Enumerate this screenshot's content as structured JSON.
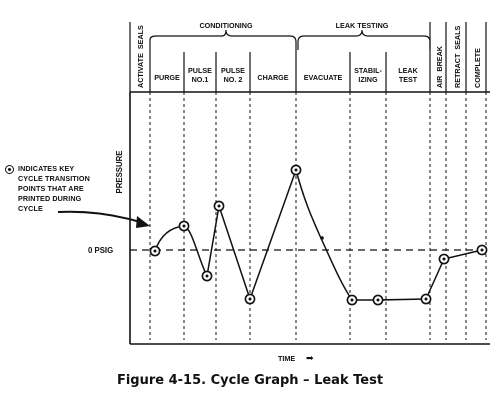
{
  "diagram": {
    "phase_groups": {
      "conditioning": "CONDITIONING",
      "leak_testing": "LEAK TESTING"
    },
    "steps": [
      [
        "ACTIVATE",
        "SEALS"
      ],
      [
        "PURGE"
      ],
      [
        "PULSE",
        "NO.1"
      ],
      [
        "PULSE",
        "NO. 2"
      ],
      [
        "CHARGE"
      ],
      [
        "EVACUATE"
      ],
      [
        "STABIL-",
        "IZING"
      ],
      [
        "LEAK",
        "TEST"
      ],
      [
        "AIR",
        "BREAK"
      ],
      [
        "RETRACT",
        "SEALS"
      ],
      [
        "COMPLETE"
      ]
    ],
    "y_axis_label": "PRESSURE",
    "reference_label": "0 PSIG",
    "x_axis_label": "TIME",
    "time_arrow": "➡",
    "legend_lines": [
      "INDICATES KEY",
      "CYCLE TRANSITION",
      "POINTS THAT ARE",
      "PRINTED DURING",
      "CYCLE"
    ],
    "legend_icon": "circled-dot-icon"
  },
  "caption": "Figure 4-15. Cycle Graph – Leak Test"
}
